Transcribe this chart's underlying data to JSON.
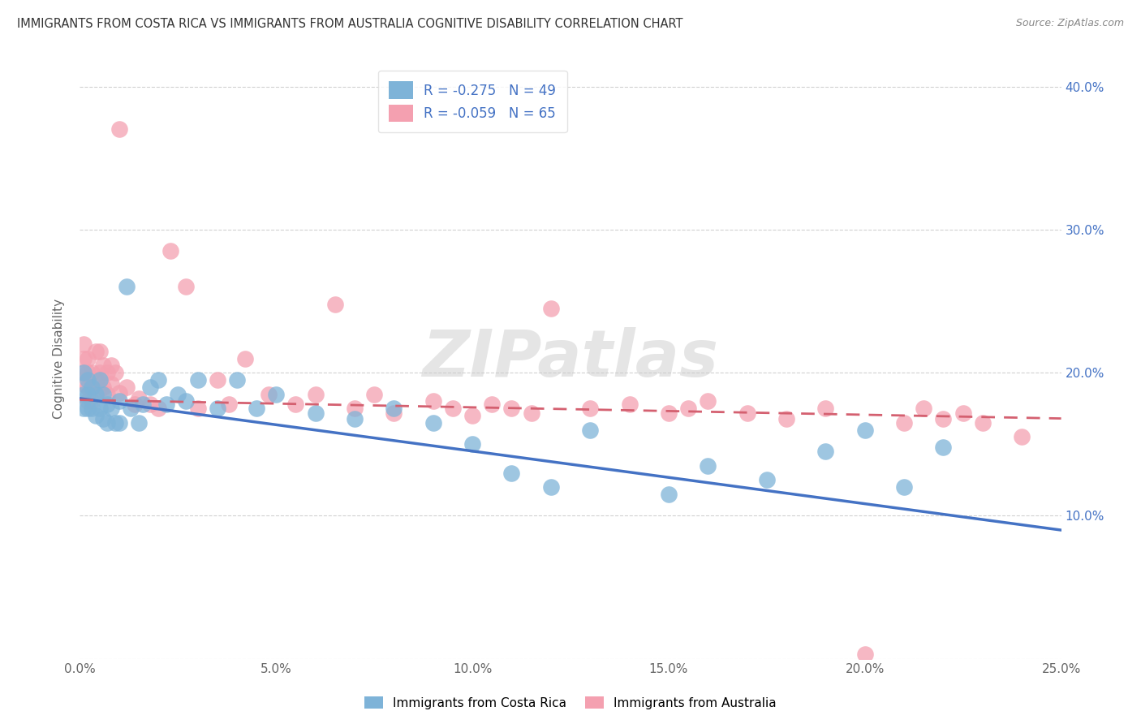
{
  "title": "IMMIGRANTS FROM COSTA RICA VS IMMIGRANTS FROM AUSTRALIA COGNITIVE DISABILITY CORRELATION CHART",
  "source": "Source: ZipAtlas.com",
  "ylabel": "Cognitive Disability",
  "xlim": [
    0.0,
    0.25
  ],
  "ylim": [
    0.0,
    0.42
  ],
  "xticks": [
    0.0,
    0.05,
    0.1,
    0.15,
    0.2,
    0.25
  ],
  "yticks": [
    0.0,
    0.1,
    0.2,
    0.3,
    0.4
  ],
  "xticklabels": [
    "0.0%",
    "5.0%",
    "10.0%",
    "15.0%",
    "20.0%",
    "25.0%"
  ],
  "right_yticklabels": [
    "",
    "10.0%",
    "20.0%",
    "30.0%",
    "40.0%"
  ],
  "costa_rica_color": "#7eb3d8",
  "australia_color": "#f4a0b0",
  "costa_rica_R": -0.275,
  "costa_rica_N": 49,
  "australia_R": -0.059,
  "australia_N": 65,
  "trend_blue_color": "#4472c4",
  "trend_pink_color": "#d46070",
  "background_color": "#ffffff",
  "grid_color": "#cccccc",
  "watermark": "ZIPatlas",
  "legend_cr_label": "R = -0.275   N = 49",
  "legend_au_label": "R = -0.059   N = 65",
  "bottom_cr_label": "Immigrants from Costa Rica",
  "bottom_au_label": "Immigrants from Australia",
  "trend_blue_start_y": 0.182,
  "trend_blue_end_y": 0.09,
  "trend_pink_start_y": 0.181,
  "trend_pink_end_y": 0.168,
  "costa_rica_x": [
    0.001,
    0.001,
    0.001,
    0.002,
    0.002,
    0.002,
    0.003,
    0.003,
    0.004,
    0.004,
    0.005,
    0.005,
    0.006,
    0.006,
    0.007,
    0.007,
    0.008,
    0.009,
    0.01,
    0.01,
    0.012,
    0.013,
    0.015,
    0.016,
    0.018,
    0.02,
    0.022,
    0.025,
    0.027,
    0.03,
    0.035,
    0.04,
    0.045,
    0.05,
    0.06,
    0.07,
    0.08,
    0.09,
    0.1,
    0.11,
    0.12,
    0.13,
    0.15,
    0.16,
    0.175,
    0.19,
    0.2,
    0.21,
    0.22
  ],
  "costa_rica_y": [
    0.2,
    0.185,
    0.175,
    0.195,
    0.185,
    0.175,
    0.19,
    0.175,
    0.185,
    0.17,
    0.195,
    0.175,
    0.185,
    0.168,
    0.178,
    0.165,
    0.175,
    0.165,
    0.18,
    0.165,
    0.26,
    0.175,
    0.165,
    0.178,
    0.19,
    0.195,
    0.178,
    0.185,
    0.18,
    0.195,
    0.175,
    0.195,
    0.175,
    0.185,
    0.172,
    0.168,
    0.175,
    0.165,
    0.15,
    0.13,
    0.12,
    0.16,
    0.115,
    0.135,
    0.125,
    0.145,
    0.16,
    0.12,
    0.148
  ],
  "australia_x": [
    0.001,
    0.001,
    0.001,
    0.001,
    0.002,
    0.002,
    0.002,
    0.002,
    0.003,
    0.003,
    0.003,
    0.004,
    0.004,
    0.005,
    0.005,
    0.005,
    0.006,
    0.006,
    0.007,
    0.007,
    0.008,
    0.008,
    0.009,
    0.01,
    0.01,
    0.012,
    0.014,
    0.015,
    0.018,
    0.02,
    0.023,
    0.027,
    0.03,
    0.035,
    0.038,
    0.042,
    0.048,
    0.055,
    0.06,
    0.065,
    0.07,
    0.075,
    0.08,
    0.09,
    0.095,
    0.1,
    0.105,
    0.11,
    0.115,
    0.12,
    0.13,
    0.14,
    0.15,
    0.155,
    0.16,
    0.17,
    0.18,
    0.19,
    0.2,
    0.21,
    0.215,
    0.22,
    0.225,
    0.23,
    0.24
  ],
  "australia_y": [
    0.22,
    0.21,
    0.2,
    0.192,
    0.21,
    0.2,
    0.19,
    0.18,
    0.2,
    0.19,
    0.18,
    0.215,
    0.195,
    0.215,
    0.2,
    0.188,
    0.205,
    0.19,
    0.2,
    0.185,
    0.205,
    0.192,
    0.2,
    0.37,
    0.186,
    0.19,
    0.178,
    0.182,
    0.178,
    0.175,
    0.285,
    0.26,
    0.175,
    0.195,
    0.178,
    0.21,
    0.185,
    0.178,
    0.185,
    0.248,
    0.175,
    0.185,
    0.172,
    0.18,
    0.175,
    0.17,
    0.178,
    0.175,
    0.172,
    0.245,
    0.175,
    0.178,
    0.172,
    0.175,
    0.18,
    0.172,
    0.168,
    0.175,
    0.003,
    0.165,
    0.175,
    0.168,
    0.172,
    0.165,
    0.155
  ]
}
